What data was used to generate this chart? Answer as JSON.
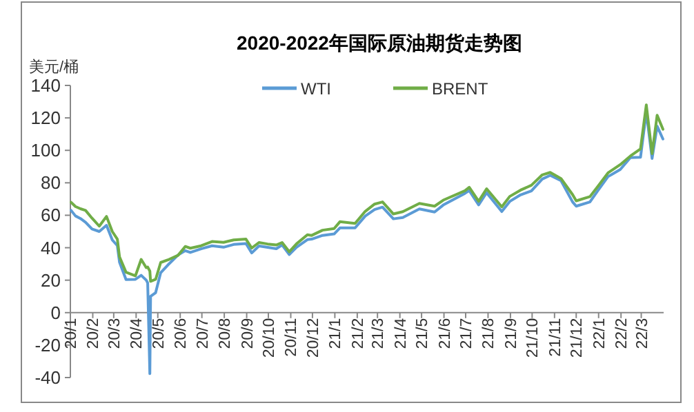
{
  "chart_data": {
    "type": "line",
    "title": "2020-2022年国际原油期货走势图",
    "ylabel": "美元/桶",
    "legend": "top",
    "marker": "none",
    "line_style": "solid",
    "grid": false,
    "xlim": [
      "2020-01-01",
      "2022-04-01"
    ],
    "xticks": [
      {
        "value": "2020-01-01",
        "label": "20/1"
      },
      {
        "value": "2020-02-01",
        "label": "20/2"
      },
      {
        "value": "2020-03-01",
        "label": "20/3"
      },
      {
        "value": "2020-04-01",
        "label": "20/4"
      },
      {
        "value": "2020-05-01",
        "label": "20/5"
      },
      {
        "value": "2020-06-01",
        "label": "20/6"
      },
      {
        "value": "2020-07-01",
        "label": "20/7"
      },
      {
        "value": "2020-08-01",
        "label": "20/8"
      },
      {
        "value": "2020-09-01",
        "label": "20/9"
      },
      {
        "value": "2020-10-01",
        "label": "20/10"
      },
      {
        "value": "2020-11-01",
        "label": "20/11"
      },
      {
        "value": "2020-12-01",
        "label": "20/12"
      },
      {
        "value": "2021-01-01",
        "label": "21/1"
      },
      {
        "value": "2021-02-01",
        "label": "21/2"
      },
      {
        "value": "2021-03-01",
        "label": "21/3"
      },
      {
        "value": "2021-04-01",
        "label": "21/4"
      },
      {
        "value": "2021-05-01",
        "label": "21/5"
      },
      {
        "value": "2021-06-01",
        "label": "21/6"
      },
      {
        "value": "2021-07-01",
        "label": "21/7"
      },
      {
        "value": "2021-08-01",
        "label": "21/8"
      },
      {
        "value": "2021-09-01",
        "label": "21/9"
      },
      {
        "value": "2021-10-01",
        "label": "21/10"
      },
      {
        "value": "2021-11-01",
        "label": "21/11"
      },
      {
        "value": "2021-12-01",
        "label": "21/12"
      },
      {
        "value": "2022-01-01",
        "label": "22/1"
      },
      {
        "value": "2022-02-01",
        "label": "22/2"
      },
      {
        "value": "2022-03-01",
        "label": "22/3"
      }
    ],
    "ylim": [
      -40,
      140
    ],
    "yticks": [
      -40,
      -20,
      0,
      20,
      40,
      60,
      80,
      100,
      120,
      140
    ],
    "x": [
      "2020-01-02",
      "2020-01-08",
      "2020-01-15",
      "2020-01-22",
      "2020-01-31",
      "2020-02-10",
      "2020-02-20",
      "2020-02-28",
      "2020-03-06",
      "2020-03-09",
      "2020-03-18",
      "2020-03-31",
      "2020-04-08",
      "2020-04-15",
      "2020-04-17",
      "2020-04-20",
      "2020-04-21",
      "2020-04-28",
      "2020-05-05",
      "2020-05-15",
      "2020-05-29",
      "2020-06-08",
      "2020-06-15",
      "2020-06-30",
      "2020-07-15",
      "2020-07-31",
      "2020-08-14",
      "2020-08-31",
      "2020-09-08",
      "2020-09-18",
      "2020-09-30",
      "2020-10-12",
      "2020-10-20",
      "2020-10-30",
      "2020-11-09",
      "2020-11-24",
      "2020-11-30",
      "2020-12-15",
      "2020-12-31",
      "2021-01-08",
      "2021-01-29",
      "2021-02-12",
      "2021-02-25",
      "2021-03-08",
      "2021-03-23",
      "2021-04-05",
      "2021-04-28",
      "2021-05-19",
      "2021-05-31",
      "2021-06-30",
      "2021-07-06",
      "2021-07-19",
      "2021-07-30",
      "2021-08-20",
      "2021-08-31",
      "2021-09-15",
      "2021-09-30",
      "2021-10-15",
      "2021-10-26",
      "2021-11-10",
      "2021-11-26",
      "2021-12-01",
      "2021-12-20",
      "2021-12-31",
      "2022-01-14",
      "2022-01-31",
      "2022-02-14",
      "2022-02-28",
      "2022-03-08",
      "2022-03-16",
      "2022-03-23",
      "2022-03-31"
    ],
    "series": [
      {
        "name": "WTI",
        "color": "#5b9bd5",
        "values": [
          63,
          59.6,
          58,
          55.7,
          51.5,
          50,
          53.8,
          44.8,
          41.3,
          31.1,
          20.4,
          20.5,
          23,
          20,
          18.3,
          -37.6,
          10,
          12.3,
          24.6,
          29.4,
          35.5,
          38.2,
          37.1,
          39.3,
          41.2,
          40.3,
          42,
          42.6,
          36.8,
          41.1,
          40.2,
          39.4,
          41.7,
          35.8,
          40.3,
          45,
          45.3,
          47.6,
          48.5,
          52.2,
          52.2,
          59.5,
          63.5,
          65,
          57.8,
          58.6,
          63.9,
          62,
          66.3,
          73.5,
          75.2,
          66.4,
          73.9,
          62.3,
          68.5,
          72.6,
          75,
          82.3,
          84.6,
          81.3,
          68.2,
          65.6,
          68.2,
          75.2,
          83.8,
          88.2,
          95.5,
          95.7,
          123.7,
          95,
          114.9,
          107
        ]
      },
      {
        "name": "BRENT",
        "color": "#70ad47",
        "values": [
          68,
          65.4,
          64,
          63,
          58.2,
          53.3,
          59.3,
          50,
          45.3,
          34.4,
          24.9,
          22.7,
          32.8,
          27.7,
          28.1,
          25.6,
          19.3,
          20.5,
          30.9,
          32.5,
          35.3,
          40.8,
          39.7,
          41.2,
          43.8,
          43.3,
          44.8,
          45.3,
          39.8,
          43.2,
          42.3,
          41.7,
          43.2,
          37.5,
          42.4,
          48,
          47.6,
          50.8,
          51.8,
          56,
          55,
          62.4,
          66.9,
          68.2,
          60.8,
          62.2,
          67.3,
          65.6,
          69.3,
          75.1,
          77.2,
          68.6,
          76.3,
          65.2,
          71.6,
          75.5,
          78.5,
          84.9,
          86.4,
          82.6,
          72.7,
          68.9,
          71.5,
          77.8,
          86.1,
          91.2,
          96.5,
          100.9,
          128,
          98,
          121.6,
          113
        ]
      }
    ]
  }
}
